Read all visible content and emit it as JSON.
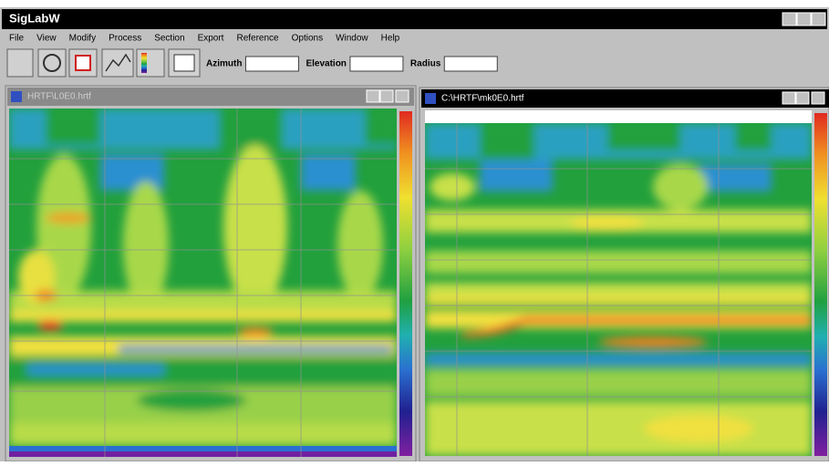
{
  "app": {
    "title": "SigLabW"
  },
  "menu": [
    "File",
    "View",
    "Modify",
    "Process",
    "Section",
    "Export",
    "Reference",
    "Options",
    "Window",
    "Help"
  ],
  "toolbar": {
    "fields": [
      "Azimuth",
      "Elevation",
      "Radius"
    ]
  },
  "windows": [
    {
      "title": "HRTF\\L0E0.hrtf"
    },
    {
      "title": "C:\\HRTF\\mk0E0.hrtf"
    }
  ]
}
